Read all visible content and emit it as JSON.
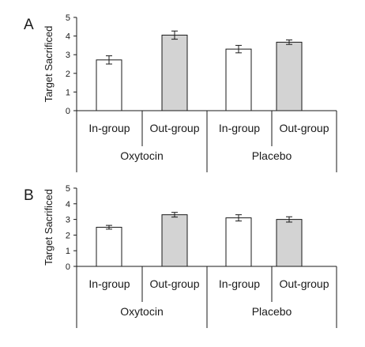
{
  "chart_data": [
    {
      "type": "bar",
      "panel_label": "A",
      "ylabel": "Target Sacrificed",
      "ylim": [
        0,
        5
      ],
      "yticks": [
        0,
        1,
        2,
        3,
        4,
        5
      ],
      "categories": [
        "In-group",
        "Out-group",
        "In-group",
        "Out-group"
      ],
      "groups": [
        {
          "label": "Oxytocin",
          "categories": [
            "In-group",
            "Out-group"
          ]
        },
        {
          "label": "Placebo",
          "categories": [
            "In-group",
            "Out-group"
          ]
        }
      ],
      "values": [
        2.72,
        4.05,
        3.3,
        3.67
      ],
      "errors": [
        0.22,
        0.22,
        0.2,
        0.12
      ],
      "bar_colors": [
        "#ffffff",
        "#d3d3d3",
        "#ffffff",
        "#d3d3d3"
      ]
    },
    {
      "type": "bar",
      "panel_label": "B",
      "ylabel": "Target Sacrificed",
      "ylim": [
        0,
        5
      ],
      "yticks": [
        0,
        1,
        2,
        3,
        4,
        5
      ],
      "categories": [
        "In-group",
        "Out-group",
        "In-group",
        "Out-group"
      ],
      "groups": [
        {
          "label": "Oxytocin",
          "categories": [
            "In-group",
            "Out-group"
          ]
        },
        {
          "label": "Placebo",
          "categories": [
            "In-group",
            "Out-group"
          ]
        }
      ],
      "values": [
        2.5,
        3.3,
        3.1,
        3.0
      ],
      "errors": [
        0.12,
        0.15,
        0.2,
        0.17
      ],
      "bar_colors": [
        "#ffffff",
        "#d3d3d3",
        "#ffffff",
        "#d3d3d3"
      ]
    }
  ]
}
